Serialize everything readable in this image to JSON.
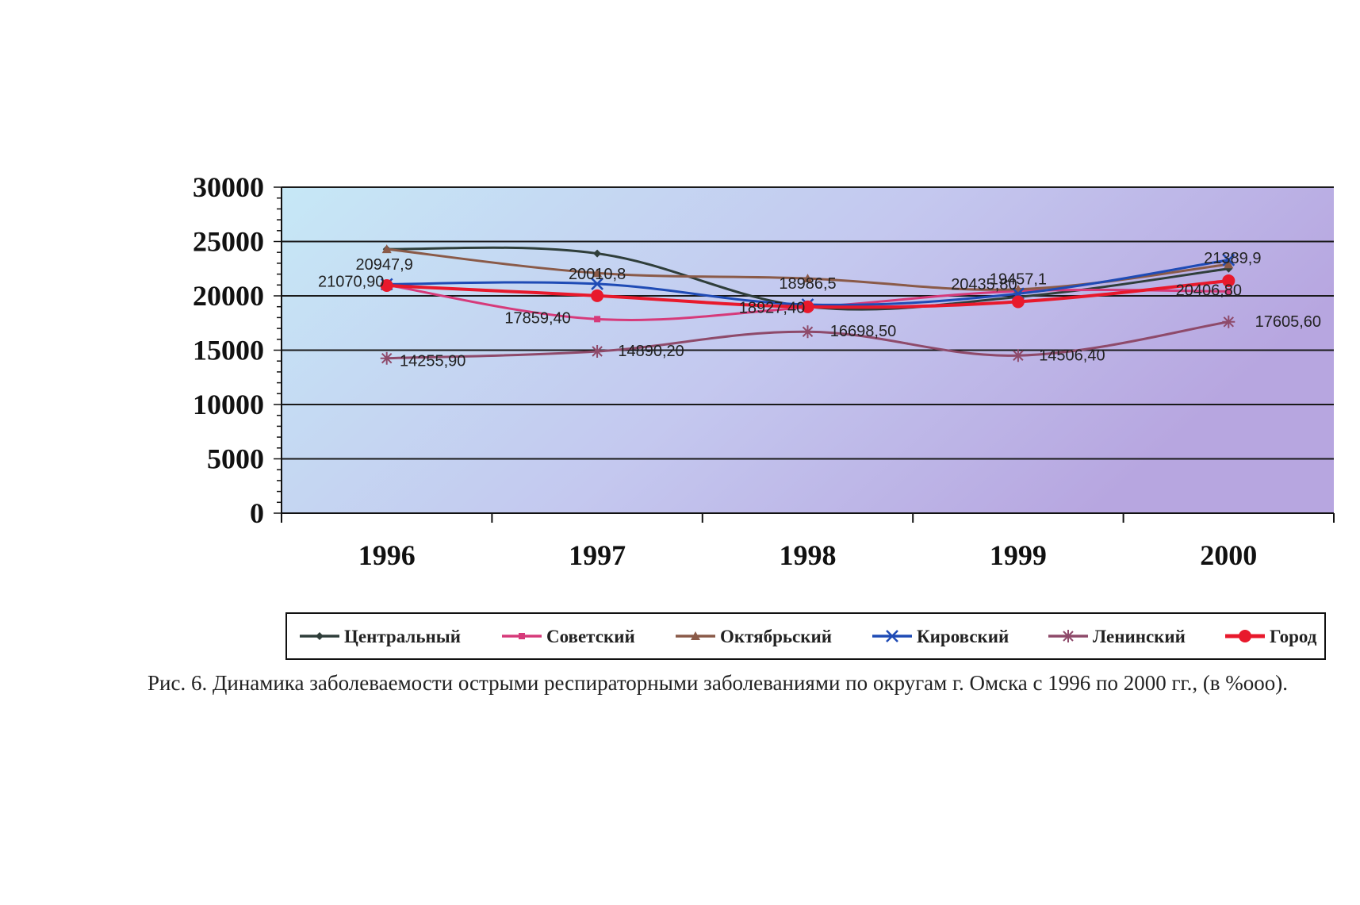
{
  "caption": "Рис. 6. Динамика заболеваемости острыми респираторными заболеваниями по округам г. Омска с 1996 по 2000 гг., (в %ооо).",
  "chart_data": {
    "type": "line",
    "categories": [
      "1996",
      "1997",
      "1998",
      "1999",
      "2000"
    ],
    "ylim": [
      0,
      30000
    ],
    "yticks": [
      "0",
      "5000",
      "10000",
      "15000",
      "20000",
      "25000",
      "30000"
    ],
    "grid": true,
    "legend_position": "bottom",
    "background": "gradient light-blue to lavender",
    "series": [
      {
        "name": "Центральный",
        "color": "#2f3e3a",
        "marker": "diamond",
        "values": [
          24300,
          23900,
          19000,
          19900,
          22500
        ]
      },
      {
        "name": "Советский",
        "color": "#d63a7a",
        "marker": "square",
        "values": [
          21000,
          17859.4,
          18927.4,
          20435.8,
          20406.8
        ]
      },
      {
        "name": "Октябрьский",
        "color": "#8a5a48",
        "marker": "triangle",
        "values": [
          24300,
          22100,
          21600,
          20600,
          22900
        ]
      },
      {
        "name": "Кировский",
        "color": "#1f4bb5",
        "marker": "x",
        "values": [
          21070.9,
          21100,
          19200,
          20200,
          23300
        ]
      },
      {
        "name": "Ленинский",
        "color": "#8e4a6a",
        "marker": "star",
        "values": [
          14255.9,
          14890.2,
          16698.5,
          14506.4,
          17605.6
        ]
      },
      {
        "name": "Город",
        "color": "#e8192c",
        "marker": "circle",
        "values": [
          20947.9,
          20010.8,
          18986.5,
          19457.1,
          21389.9
        ]
      }
    ],
    "data_labels": [
      {
        "text": "20947,9",
        "x": "1996",
        "y": 20947.9
      },
      {
        "text": "21070,90",
        "x": "1996",
        "y": 21070.9
      },
      {
        "text": "14255,90",
        "x": "1996",
        "y": 14255.9
      },
      {
        "text": "20010,8",
        "x": "1997",
        "y": 20010.8
      },
      {
        "text": "17859,40",
        "x": "1997",
        "y": 17859.4
      },
      {
        "text": "14890,20",
        "x": "1997",
        "y": 14890.2
      },
      {
        "text": "18986,5",
        "x": "1998",
        "y": 18986.5
      },
      {
        "text": "18927,40",
        "x": "1998",
        "y": 18927.4
      },
      {
        "text": "16698,50",
        "x": "1998",
        "y": 16698.5
      },
      {
        "text": "19457,1",
        "x": "1999",
        "y": 19457.1
      },
      {
        "text": "20435,80",
        "x": "1999",
        "y": 20435.8
      },
      {
        "text": "14506,40",
        "x": "1999",
        "y": 14506.4
      },
      {
        "text": "21389,9",
        "x": "2000",
        "y": 21389.9
      },
      {
        "text": "20406,80",
        "x": "2000",
        "y": 20406.8
      },
      {
        "text": "17605,60",
        "x": "2000",
        "y": 17605.6
      }
    ]
  }
}
